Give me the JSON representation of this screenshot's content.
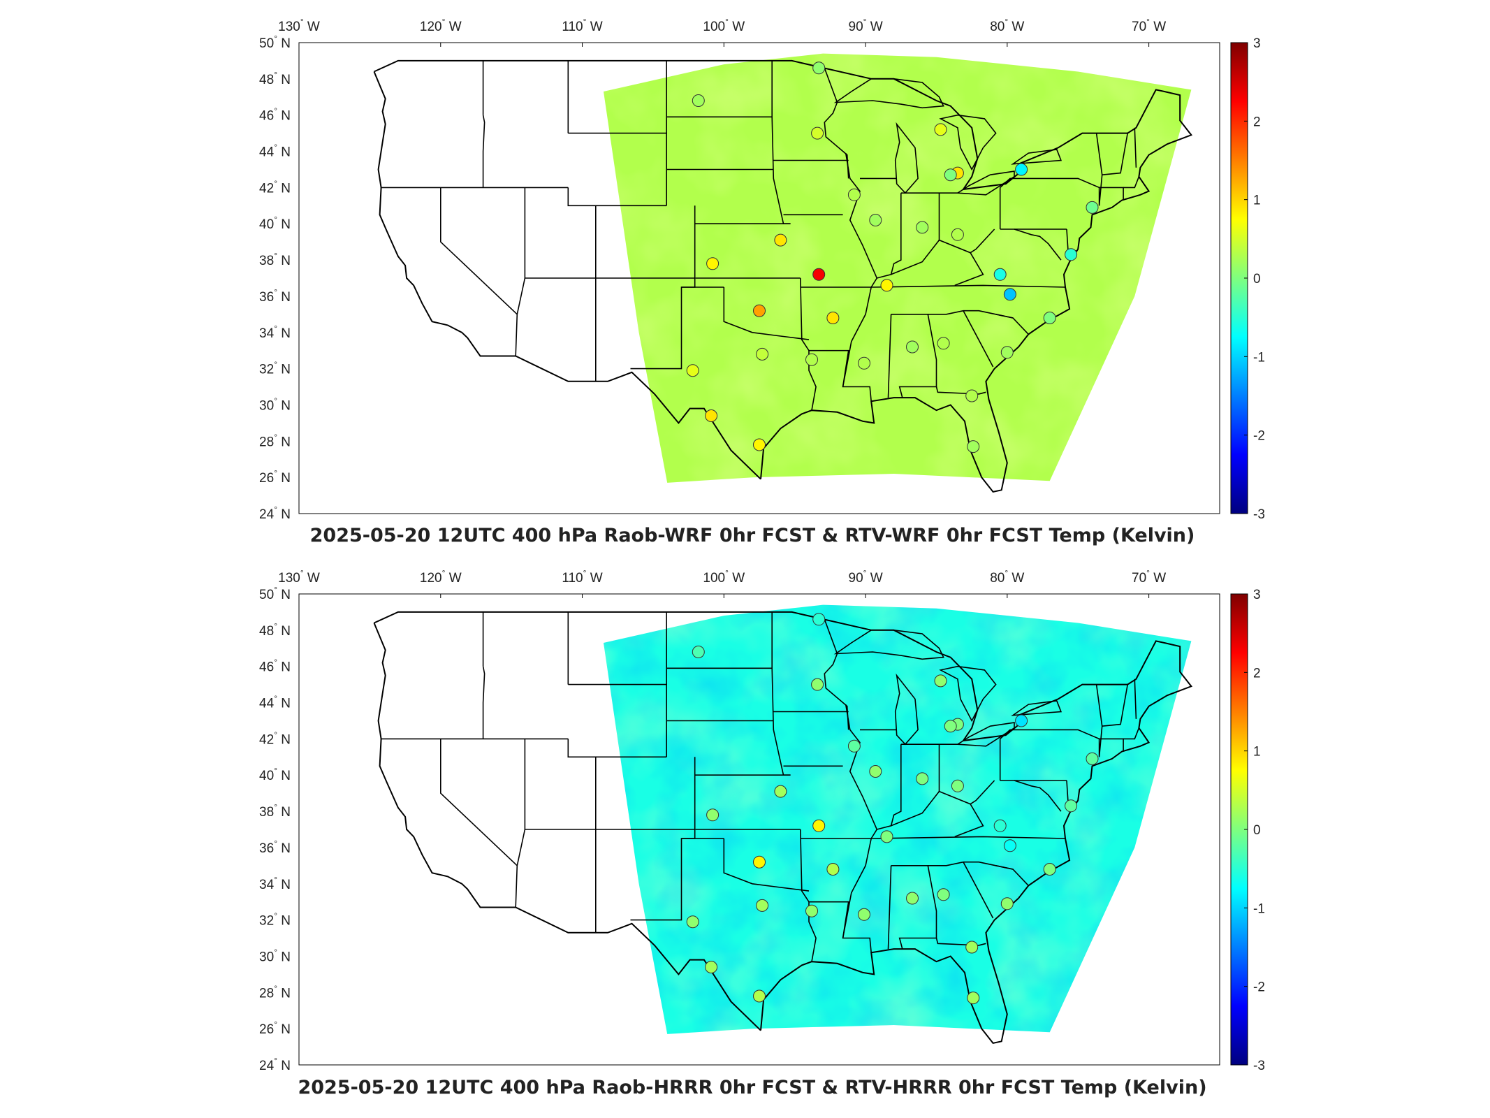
{
  "colors": {
    "scale": [
      "#00007f",
      "#0000ff",
      "#007fff",
      "#00ffff",
      "#7fff7f",
      "#ffff00",
      "#ff7f00",
      "#ff0000",
      "#7f0000"
    ],
    "coast": "#000000",
    "frame": "#000000"
  },
  "colorbar_range": [
    -3,
    3
  ],
  "chart_data": [
    {
      "type": "heatmap",
      "title": "2025-05-20 12UTC 400 hPa Raob-WRF 0hr FCST & RTV-WRF 0hr FCST Temp (Kelvin)",
      "x_ticks": [
        "130",
        "120",
        "110",
        "100",
        "90",
        "80",
        "70"
      ],
      "x_suffix": "W",
      "y_ticks": [
        "50",
        "48",
        "46",
        "44",
        "42",
        "40",
        "38",
        "36",
        "34",
        "32",
        "30",
        "28",
        "26",
        "24"
      ],
      "y_suffix": "N",
      "colorbar_ticks": [
        "3",
        "2",
        "1",
        "0",
        "-1",
        "-2",
        "-3"
      ],
      "xlim": [
        -130,
        -65
      ],
      "ylim": [
        24,
        50
      ],
      "field_mean": 0.3,
      "stations": [
        {
          "lon": -101.8,
          "lat": 46.8,
          "v": 0.2
        },
        {
          "lon": -93.3,
          "lat": 48.6,
          "v": 0.1
        },
        {
          "lon": -93.4,
          "lat": 45.0,
          "v": 0.5
        },
        {
          "lon": -84.7,
          "lat": 45.2,
          "v": 0.6
        },
        {
          "lon": -83.5,
          "lat": 42.8,
          "v": 0.9
        },
        {
          "lon": -79.0,
          "lat": 43.0,
          "v": -0.8
        },
        {
          "lon": -90.8,
          "lat": 41.6,
          "v": 0.3
        },
        {
          "lon": -89.3,
          "lat": 40.2,
          "v": 0.2
        },
        {
          "lon": -86.0,
          "lat": 39.8,
          "v": 0.2
        },
        {
          "lon": -96.0,
          "lat": 39.1,
          "v": 0.9
        },
        {
          "lon": -100.8,
          "lat": 37.8,
          "v": 0.8
        },
        {
          "lon": -93.3,
          "lat": 37.2,
          "v": 2.3
        },
        {
          "lon": -88.5,
          "lat": 36.6,
          "v": 0.8
        },
        {
          "lon": -80.5,
          "lat": 37.2,
          "v": -0.6
        },
        {
          "lon": -79.8,
          "lat": 36.1,
          "v": -1.1
        },
        {
          "lon": -97.5,
          "lat": 35.2,
          "v": 1.3
        },
        {
          "lon": -92.3,
          "lat": 34.8,
          "v": 0.9
        },
        {
          "lon": -97.3,
          "lat": 32.8,
          "v": 0.4
        },
        {
          "lon": -93.8,
          "lat": 32.5,
          "v": 0.3
        },
        {
          "lon": -90.1,
          "lat": 32.3,
          "v": 0.3
        },
        {
          "lon": -86.7,
          "lat": 33.2,
          "v": 0.2
        },
        {
          "lon": -84.5,
          "lat": 33.4,
          "v": 0.3
        },
        {
          "lon": -80.0,
          "lat": 32.9,
          "v": 0.2
        },
        {
          "lon": -102.2,
          "lat": 31.9,
          "v": 0.6
        },
        {
          "lon": -100.9,
          "lat": 29.4,
          "v": 0.9
        },
        {
          "lon": -97.5,
          "lat": 27.8,
          "v": 0.8
        },
        {
          "lon": -82.5,
          "lat": 30.5,
          "v": 0.3
        },
        {
          "lon": -82.4,
          "lat": 27.7,
          "v": 0.2
        },
        {
          "lon": -77.0,
          "lat": 34.8,
          "v": 0.0
        },
        {
          "lon": -75.5,
          "lat": 38.3,
          "v": -0.5
        },
        {
          "lon": -74.0,
          "lat": 40.9,
          "v": -0.1
        },
        {
          "lon": -83.5,
          "lat": 39.4,
          "v": 0.3
        },
        {
          "lon": -84.0,
          "lat": 42.7,
          "v": 0.0
        }
      ]
    },
    {
      "type": "heatmap",
      "title": "2025-05-20 12UTC 400 hPa Raob-HRRR 0hr FCST & RTV-HRRR 0hr FCST Temp (Kelvin)",
      "x_ticks": [
        "130",
        "120",
        "110",
        "100",
        "90",
        "80",
        "70"
      ],
      "x_suffix": "W",
      "y_ticks": [
        "50",
        "48",
        "46",
        "44",
        "42",
        "40",
        "38",
        "36",
        "34",
        "32",
        "30",
        "28",
        "26",
        "24"
      ],
      "y_suffix": "N",
      "colorbar_ticks": [
        "3",
        "2",
        "1",
        "0",
        "-1",
        "-2",
        "-3"
      ],
      "xlim": [
        -130,
        -65
      ],
      "ylim": [
        24,
        50
      ],
      "field_mean": -0.6,
      "stations": [
        {
          "lon": -101.8,
          "lat": 46.8,
          "v": -0.3
        },
        {
          "lon": -93.3,
          "lat": 48.6,
          "v": -0.5
        },
        {
          "lon": -93.4,
          "lat": 45.0,
          "v": 0.1
        },
        {
          "lon": -84.7,
          "lat": 45.2,
          "v": 0.1
        },
        {
          "lon": -83.5,
          "lat": 42.8,
          "v": 0.0
        },
        {
          "lon": -79.0,
          "lat": 43.0,
          "v": -0.9
        },
        {
          "lon": -90.8,
          "lat": 41.6,
          "v": -0.2
        },
        {
          "lon": -89.3,
          "lat": 40.2,
          "v": 0.1
        },
        {
          "lon": -86.0,
          "lat": 39.8,
          "v": 0.0
        },
        {
          "lon": -96.0,
          "lat": 39.1,
          "v": 0.2
        },
        {
          "lon": -100.8,
          "lat": 37.8,
          "v": 0.1
        },
        {
          "lon": -93.3,
          "lat": 37.2,
          "v": 0.8
        },
        {
          "lon": -88.5,
          "lat": 36.6,
          "v": 0.0
        },
        {
          "lon": -80.5,
          "lat": 37.2,
          "v": -0.5
        },
        {
          "lon": -79.8,
          "lat": 36.1,
          "v": -0.7
        },
        {
          "lon": -97.5,
          "lat": 35.2,
          "v": 0.8
        },
        {
          "lon": -92.3,
          "lat": 34.8,
          "v": 0.3
        },
        {
          "lon": -97.3,
          "lat": 32.8,
          "v": 0.2
        },
        {
          "lon": -93.8,
          "lat": 32.5,
          "v": 0.1
        },
        {
          "lon": -90.1,
          "lat": 32.3,
          "v": 0.1
        },
        {
          "lon": -86.7,
          "lat": 33.2,
          "v": 0.1
        },
        {
          "lon": -84.5,
          "lat": 33.4,
          "v": 0.0
        },
        {
          "lon": -80.0,
          "lat": 32.9,
          "v": 0.1
        },
        {
          "lon": -102.2,
          "lat": 31.9,
          "v": 0.1
        },
        {
          "lon": -100.9,
          "lat": 29.4,
          "v": 0.2
        },
        {
          "lon": -97.5,
          "lat": 27.8,
          "v": 0.3
        },
        {
          "lon": -82.5,
          "lat": 30.5,
          "v": 0.2
        },
        {
          "lon": -82.4,
          "lat": 27.7,
          "v": 0.2
        },
        {
          "lon": -77.0,
          "lat": 34.8,
          "v": 0.0
        },
        {
          "lon": -75.5,
          "lat": 38.3,
          "v": -0.2
        },
        {
          "lon": -74.0,
          "lat": 40.9,
          "v": -0.2
        },
        {
          "lon": -83.5,
          "lat": 39.4,
          "v": 0.0
        },
        {
          "lon": -84.0,
          "lat": 42.7,
          "v": 0.0
        }
      ]
    }
  ]
}
